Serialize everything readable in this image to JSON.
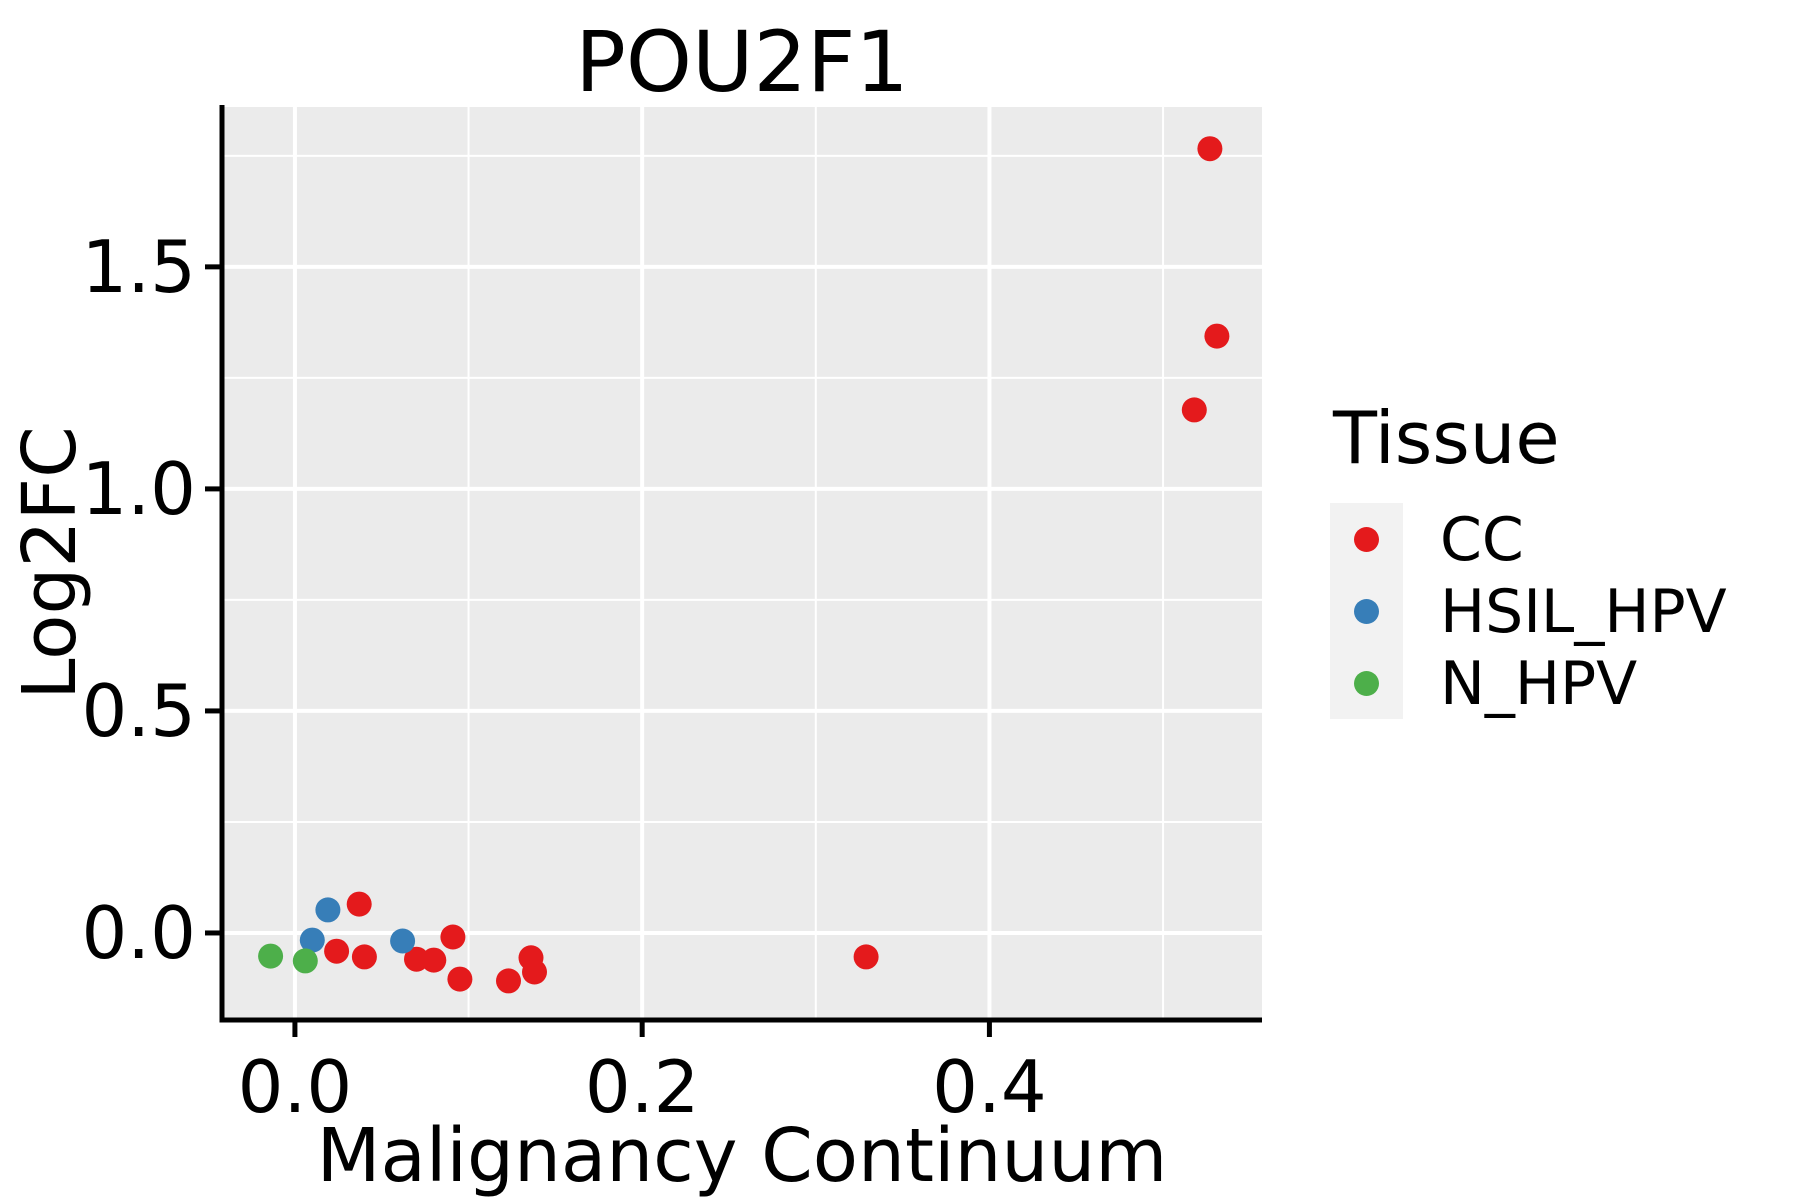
{
  "title": "POU2F1",
  "axes": {
    "x": {
      "label": "Malignancy Continuum",
      "tick_labels": [
        "0.0",
        "0.2",
        "0.4"
      ],
      "tick_values": [
        0.0,
        0.2,
        0.4
      ],
      "minor_values": [
        0.1,
        0.3,
        0.5
      ],
      "range": [
        -0.042,
        0.557
      ]
    },
    "y": {
      "label": "Log2FC",
      "tick_labels": [
        "0.0",
        "0.5",
        "1.0",
        "1.5"
      ],
      "tick_values": [
        0.0,
        0.5,
        1.0,
        1.5
      ],
      "minor_values": [
        0.25,
        0.75,
        1.25,
        1.75
      ],
      "range": [
        -0.196,
        1.86
      ]
    }
  },
  "legend": {
    "title": "Tissue",
    "items": [
      {
        "label": "CC",
        "color": "#E41A1C"
      },
      {
        "label": "HSIL_HPV",
        "color": "#377EB8"
      },
      {
        "label": "N_HPV",
        "color": "#4DAF4A"
      }
    ]
  },
  "colors": {
    "panel_background": "#EBEBEB",
    "gridline": "#FFFFFF",
    "axis_line": "#000000",
    "legend_key_background": "#F2F2F2",
    "text": "#000000"
  },
  "chart_data": {
    "type": "scatter",
    "title": "POU2F1",
    "xlabel": "Malignancy Continuum",
    "ylabel": "Log2FC",
    "xlim": [
      -0.042,
      0.557
    ],
    "ylim": [
      -0.196,
      1.86
    ],
    "grid": "on",
    "legend_position": "right",
    "legend_title": "Tissue",
    "series": [
      {
        "name": "CC",
        "color": "#E41A1C",
        "points": [
          [
            0.527,
            1.766
          ],
          [
            0.531,
            1.344
          ],
          [
            0.518,
            1.178
          ],
          [
            0.329,
            -0.054
          ],
          [
            0.037,
            0.065
          ],
          [
            0.024,
            -0.041
          ],
          [
            0.04,
            -0.054
          ],
          [
            0.07,
            -0.059
          ],
          [
            0.08,
            -0.061
          ],
          [
            0.091,
            -0.009
          ],
          [
            0.095,
            -0.104
          ],
          [
            0.123,
            -0.108
          ],
          [
            0.136,
            -0.056
          ],
          [
            0.138,
            -0.088
          ]
        ]
      },
      {
        "name": "HSIL_HPV",
        "color": "#377EB8",
        "points": [
          [
            0.019,
            0.052
          ],
          [
            0.01,
            -0.016
          ],
          [
            0.062,
            -0.018
          ]
        ]
      },
      {
        "name": "N_HPV",
        "color": "#4DAF4A",
        "points": [
          [
            -0.014,
            -0.052
          ],
          [
            0.006,
            -0.063
          ]
        ]
      }
    ]
  }
}
